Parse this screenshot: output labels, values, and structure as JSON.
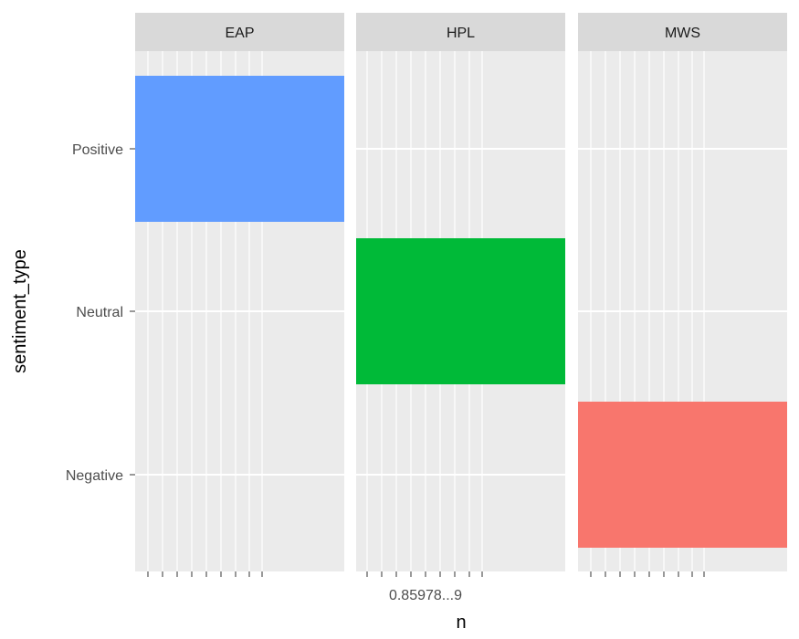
{
  "chart_data": {
    "type": "bar",
    "orientation": "horizontal",
    "facet_by": "author",
    "facets": [
      "EAP",
      "HPL",
      "MWS"
    ],
    "categories": [
      "Negative",
      "Neutral",
      "Positive"
    ],
    "xlabel": "n",
    "ylabel": "sentiment_type",
    "grid": true,
    "legend": "none",
    "bars": [
      {
        "facet": "EAP",
        "category": "Positive",
        "value": 1,
        "color": "#619CFF"
      },
      {
        "facet": "HPL",
        "category": "Neutral",
        "value": 1,
        "color": "#00BA38"
      },
      {
        "facet": "MWS",
        "category": "Negative",
        "value": 1,
        "color": "#F8766D"
      }
    ]
  },
  "x_tick_labels": "0.85978...9"
}
